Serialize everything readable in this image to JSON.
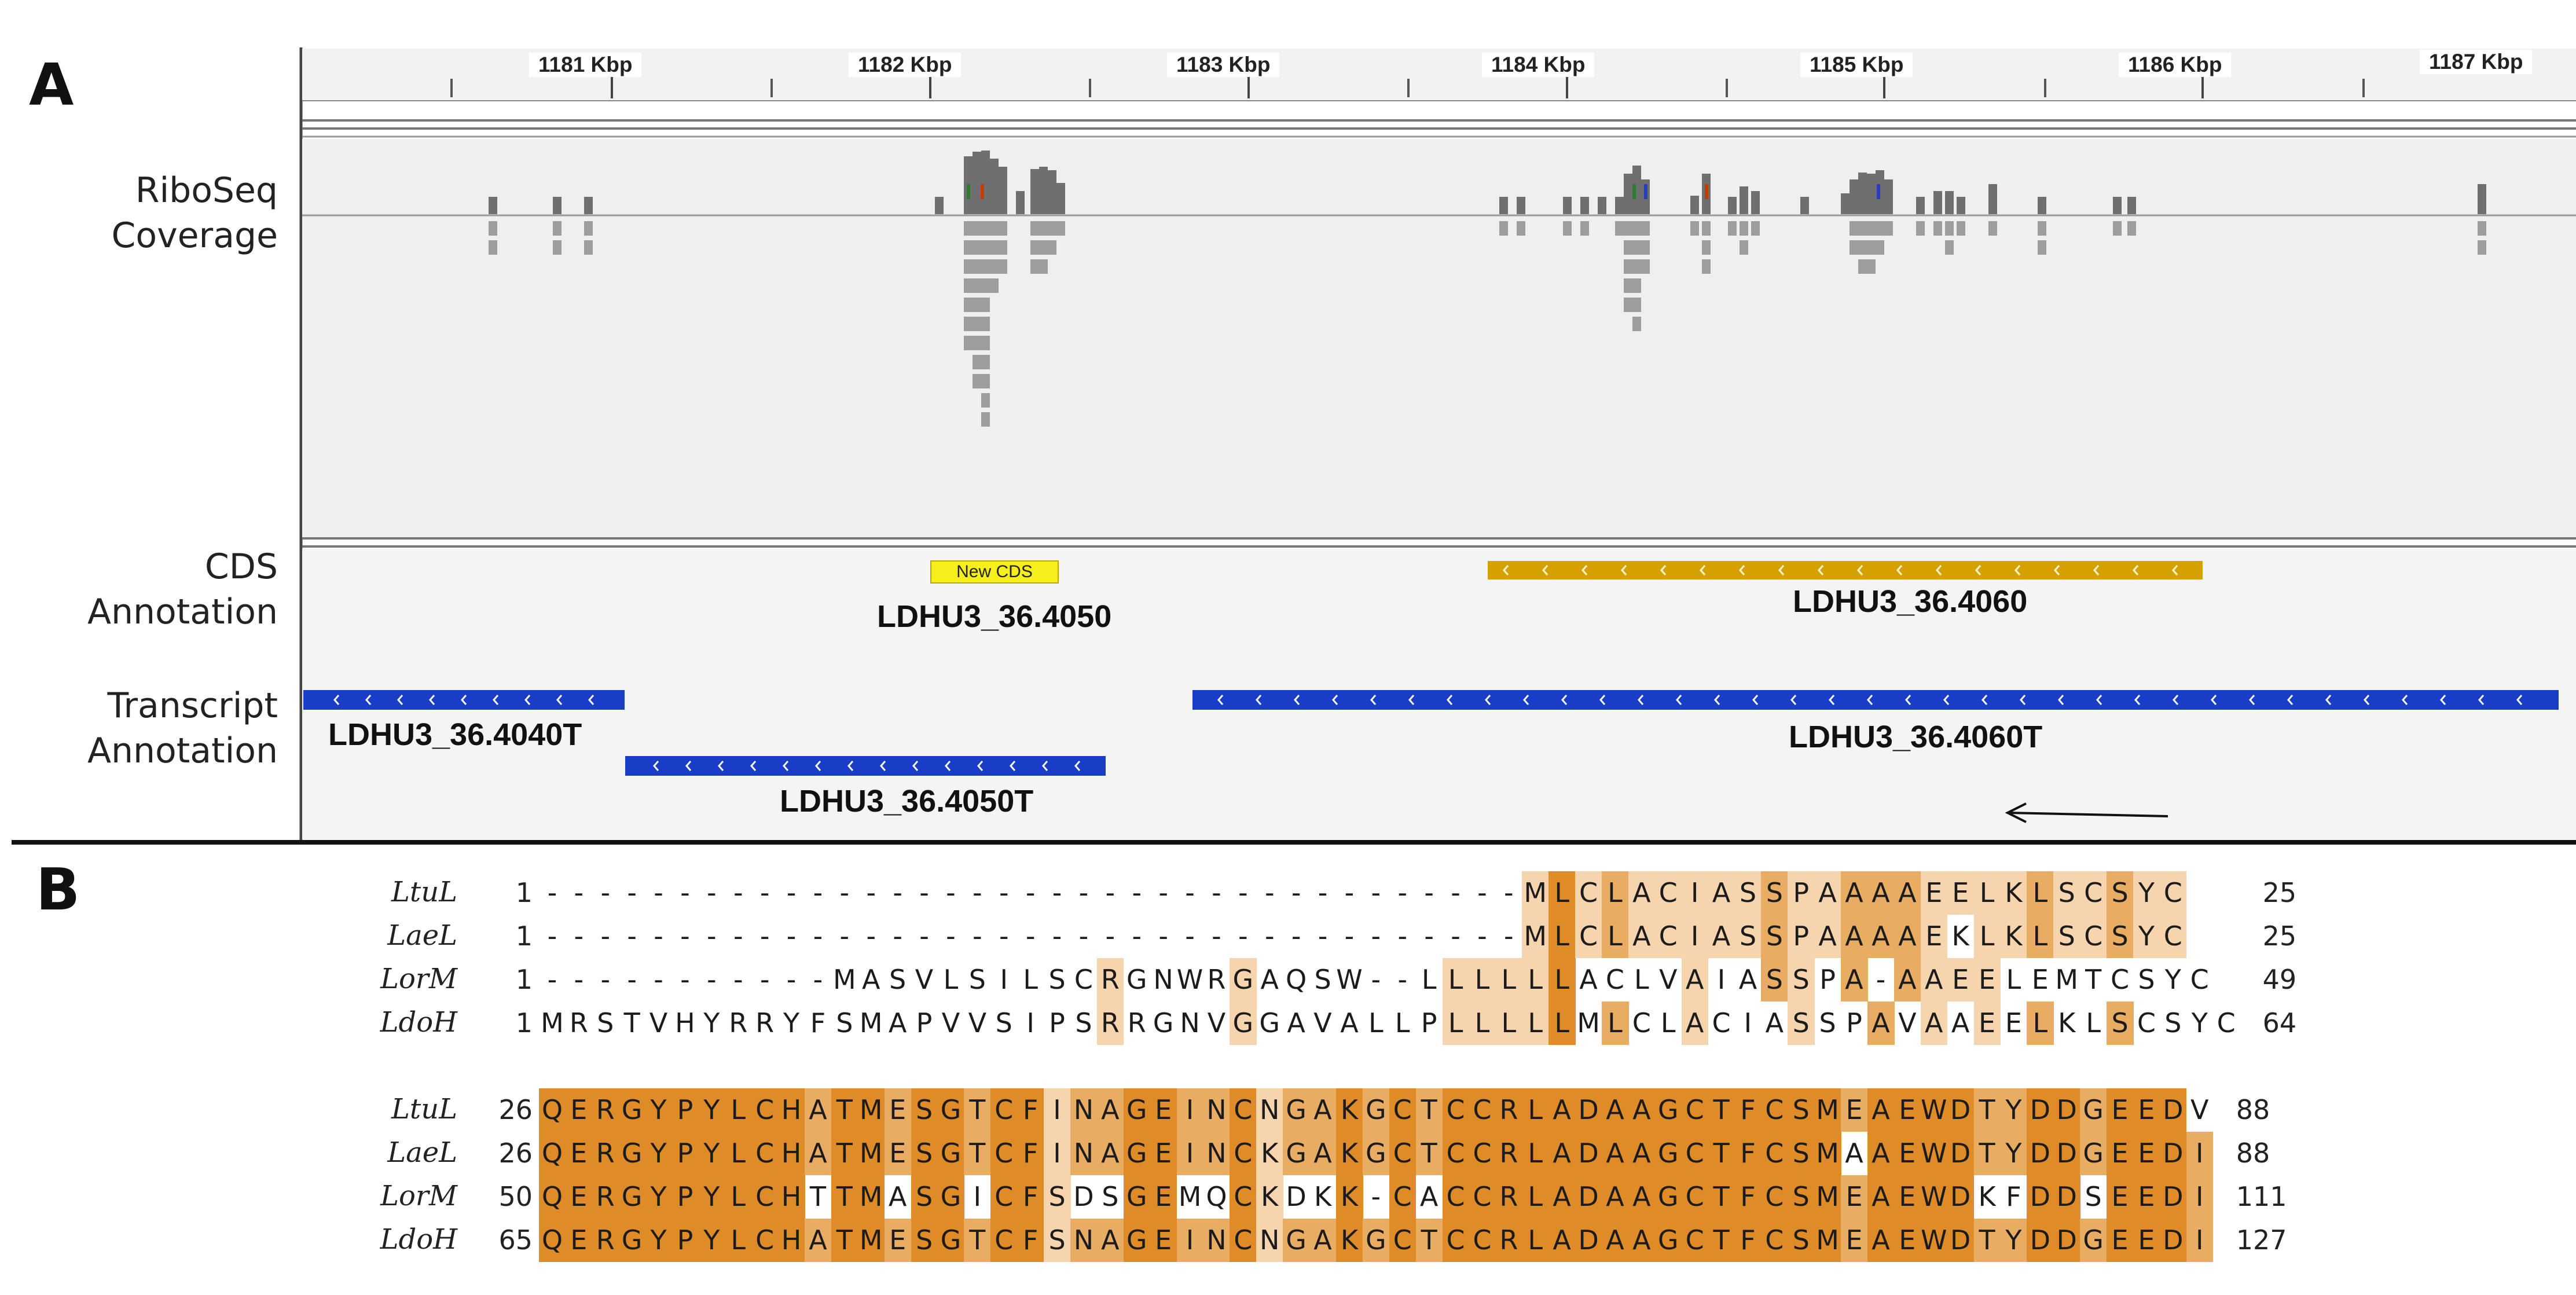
{
  "panels": {
    "a": "A",
    "b": "B"
  },
  "track_labels": {
    "riboseq": [
      "RiboSeq",
      "Coverage"
    ],
    "cds": [
      "CDS",
      "Annotation"
    ],
    "transcript": [
      "Transcript",
      "Annotation"
    ]
  },
  "axis": {
    "ticks": [
      "1181 Kbp",
      "1182 Kbp",
      "1183 Kbp",
      "1184 Kbp",
      "1185 Kbp",
      "1186 Kbp",
      "1187 Kbp"
    ]
  },
  "cds": {
    "new_cds_label": "New CDS",
    "new_cds_gene": "LDHU3_36.4050",
    "gene_4060": "LDHU3_36.4060",
    "cds_color": "#d6a000",
    "new_cds_color": "#f6ef19"
  },
  "transcripts": {
    "t4040": "LDHU3_36.4040T",
    "t4050": "LDHU3_36.4050T",
    "t4060": "LDHU3_36.4060T",
    "color": "#1a3dc8"
  },
  "alignment": {
    "blocks": [
      {
        "rows": [
          {
            "name": "LtuL",
            "start": "1",
            "seq": "-------------------------------------MLCLACIASSPAAAAEELKLSCSYC",
            "end": "25"
          },
          {
            "name": "LaeL",
            "start": "1",
            "seq": "-------------------------------------MLCLACIASSPAAAAEKLKLSCSYC",
            "end": "25"
          },
          {
            "name": "LorM",
            "start": "1",
            "seq": "-----------MASVLSILSCRGNWRGAQSW--LLLLLLACLVAIASSPA-AAEELEMTCSYC",
            "end": "49"
          },
          {
            "name": "LdoH",
            "start": "1",
            "seq": "MRSTVHYRRYFSMAPVVSIPSRRGNVGGAVALLPLLLLLMLCLACIASSPAVAAEELKLSCSYC",
            "end": "64"
          }
        ]
      },
      {
        "rows": [
          {
            "name": "LtuL",
            "start": "26",
            "seq": "QERGYPYLCHATMESGTCFINAGEINCNGAKGCTCCRLADAAGCTFCSMEAEWDTYDDGEEDV",
            "end": "88"
          },
          {
            "name": "LaeL",
            "start": "26",
            "seq": "QERGYPYLCHATMESGTCFINAGEINCKGAKGCTCCRLADAAGCTFCSMAAEWDTYDDGEEDI",
            "end": "88"
          },
          {
            "name": "LorM",
            "start": "50",
            "seq": "QERGYPYLCHTTMASGICFSDSGEMQCKDKK-CACCRLADAAGCTFCSMEAEWDKFDDSEEDI",
            "end": "111"
          },
          {
            "name": "LdoH",
            "start": "65",
            "seq": "QERGYPYLCHATMESGTCFSNAGEINCNGAKGCTCCRLADAAGCTFCSMEAEWDTYDDGEEDI",
            "end": "127"
          }
        ]
      }
    ],
    "colors": {
      "full": "#de8b28",
      "three": "#e9ac63",
      "two": "#f6d4ad"
    }
  }
}
